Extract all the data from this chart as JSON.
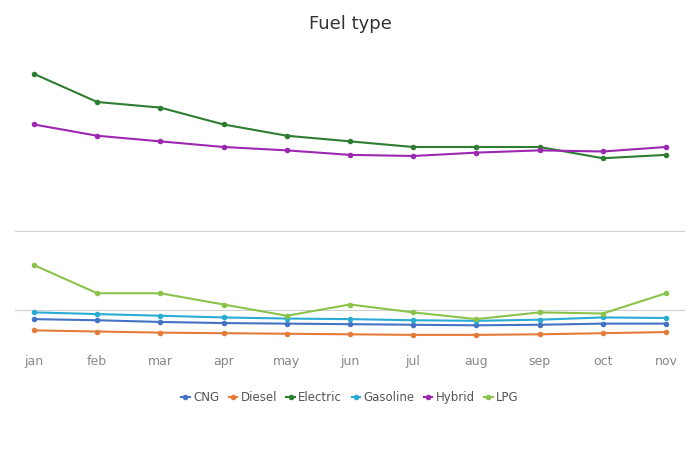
{
  "title": "Fuel type",
  "months": [
    "jan",
    "feb",
    "mar",
    "apr",
    "may",
    "jun",
    "jul",
    "aug",
    "sep",
    "oct",
    "nov"
  ],
  "series": {
    "CNG": {
      "color": "#4472C4",
      "marker": "o",
      "values": [
        8200,
        8100,
        7950,
        7850,
        7800,
        7750,
        7700,
        7650,
        7700,
        7800,
        7800
      ]
    },
    "Diesel": {
      "color": "#E47B3A",
      "marker": "o",
      "values": [
        7200,
        7100,
        7000,
        6950,
        6900,
        6850,
        6800,
        6800,
        6850,
        6950,
        7050
      ]
    },
    "Electric": {
      "color": "#2E7D32",
      "marker": "o",
      "values": [
        30000,
        27500,
        27000,
        25500,
        24500,
        24000,
        23500,
        23500,
        23500,
        22500,
        22800
      ]
    },
    "Gasoline": {
      "color": "#29ABD4",
      "marker": "o",
      "values": [
        8800,
        8650,
        8500,
        8350,
        8250,
        8200,
        8100,
        8050,
        8150,
        8350,
        8300
      ]
    },
    "Hybrid": {
      "color": "#9C27B0",
      "marker": "o",
      "values": [
        25500,
        24500,
        24000,
        23500,
        23200,
        22800,
        22700,
        23000,
        23200,
        23100,
        23500
      ]
    },
    "LPG": {
      "color": "#8BC34A",
      "marker": "o",
      "values": [
        13000,
        10500,
        10500,
        9500,
        8500,
        9500,
        8800,
        8200,
        8800,
        8700,
        10500
      ]
    }
  },
  "background_color": "#ffffff",
  "grid_color": "#d0d0d0",
  "legend_order": [
    "CNG",
    "Diesel",
    "Electric",
    "Gasoline",
    "Hybrid",
    "LPG"
  ],
  "ylim": [
    5500,
    33000
  ],
  "title_fontsize": 13,
  "figsize": [
    7.0,
    4.5
  ],
  "dpi": 100
}
